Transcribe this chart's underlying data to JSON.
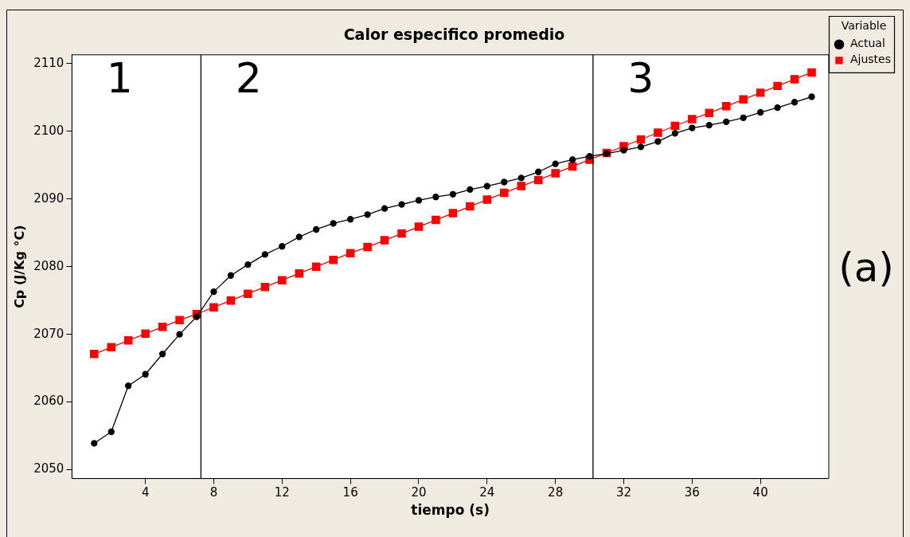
{
  "chart_data": {
    "type": "line",
    "title": "Calor especifico promedio",
    "xlabel": "tiempo (s)",
    "ylabel": "Cp (J/Kg °C)",
    "legend_title": "Variable",
    "x": [
      1,
      2,
      3,
      4,
      5,
      6,
      7,
      8,
      9,
      10,
      11,
      12,
      13,
      14,
      15,
      16,
      17,
      18,
      19,
      20,
      21,
      22,
      23,
      24,
      25,
      26,
      27,
      28,
      29,
      30,
      31,
      32,
      33,
      34,
      35,
      36,
      37,
      38,
      39,
      40,
      41,
      42,
      43
    ],
    "series": [
      {
        "name": "Actual",
        "color": "#000000",
        "marker": "circle",
        "values": [
          2053.9,
          2055.6,
          2062.4,
          2064.1,
          2067.1,
          2070.0,
          2072.6,
          2076.3,
          2078.7,
          2080.3,
          2081.8,
          2083.0,
          2084.4,
          2085.5,
          2086.4,
          2087.0,
          2087.7,
          2088.6,
          2089.2,
          2089.8,
          2090.3,
          2090.7,
          2091.4,
          2091.9,
          2092.5,
          2093.1,
          2094.0,
          2095.2,
          2095.8,
          2096.3,
          2096.7,
          2097.2,
          2097.7,
          2098.5,
          2099.7,
          2100.5,
          2100.9,
          2101.4,
          2102.0,
          2102.8,
          2103.5,
          2104.3,
          2105.1
        ]
      },
      {
        "name": "Ajustes",
        "color": "#ff0000",
        "marker": "square",
        "values": [
          2067.1,
          2068.1,
          2069.1,
          2070.1,
          2071.1,
          2072.1,
          2073.0,
          2074.0,
          2075.0,
          2076.0,
          2077.0,
          2078.0,
          2079.0,
          2080.0,
          2081.0,
          2082.0,
          2082.9,
          2083.9,
          2084.9,
          2085.9,
          2086.9,
          2087.9,
          2088.9,
          2089.9,
          2090.9,
          2091.9,
          2092.8,
          2093.8,
          2094.8,
          2095.8,
          2096.8,
          2097.8,
          2098.8,
          2099.8,
          2100.8,
          2101.8,
          2102.7,
          2103.7,
          2104.7,
          2105.7,
          2106.7,
          2107.7,
          2108.7
        ]
      }
    ],
    "xlim": [
      -0.3,
      44
    ],
    "ylim": [
      2048.7,
      2111.3
    ],
    "xticks": [
      4,
      8,
      12,
      16,
      20,
      24,
      28,
      32,
      36,
      40
    ],
    "yticks": [
      2050,
      2060,
      2070,
      2080,
      2090,
      2100,
      2110
    ],
    "ref_lines": [
      {
        "axis": "x",
        "value": 7.25,
        "color": "#000000"
      },
      {
        "axis": "x",
        "value": 30.2,
        "color": "#000000"
      }
    ],
    "annotations": [
      "1",
      "2",
      "3",
      "(a)"
    ],
    "legend": "top right",
    "grid": false
  }
}
